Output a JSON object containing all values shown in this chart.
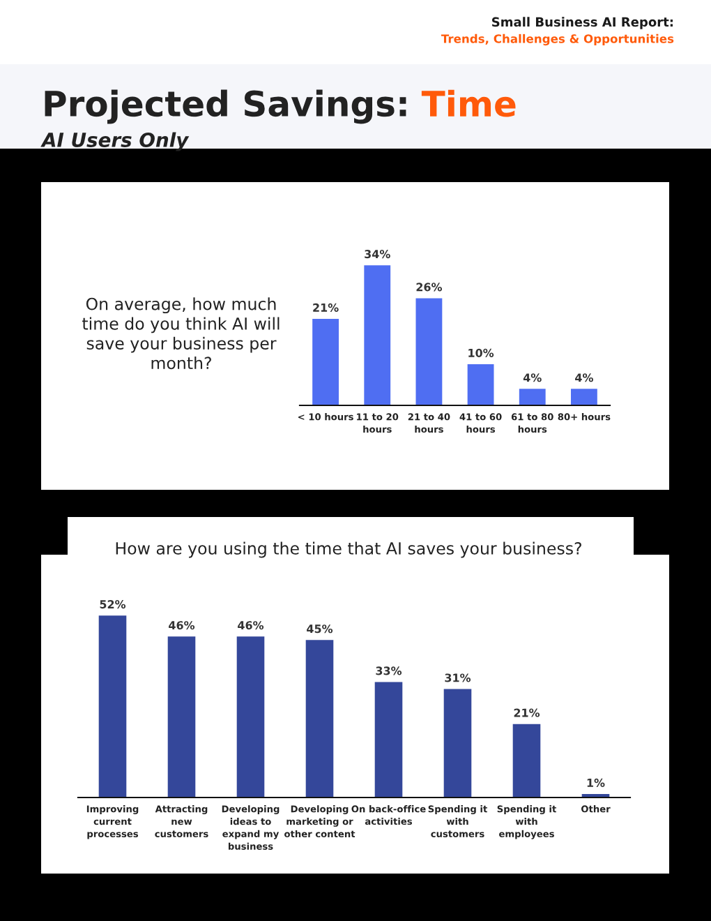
{
  "chart_data": [
    {
      "type": "bar",
      "title": "On average, how much time do you think AI will save your business per month?",
      "annotations": [
        "Small Business AI Report:",
        "Trends, Challenges & Opportunities",
        "Projected Savings:",
        "Time",
        "AI Users Only"
      ],
      "categories": [
        "< 10 hours",
        "11 to 20\nhours",
        "21 to 40\nhours",
        "41 to 60\nhours",
        "61 to 80\nhours",
        "80+ hours"
      ],
      "values": [
        21,
        34,
        26,
        10,
        4,
        4
      ],
      "color": "#4f6ef2",
      "value_labels": [
        "21%",
        "34%",
        "26%",
        "10%",
        "4%",
        "4%"
      ],
      "grid": false,
      "legend": false
    },
    {
      "type": "bar",
      "title": "How are you using the time that AI saves your business?",
      "categories": [
        "Improving\ncurrent\nprocesses",
        "Attracting\nnew\ncustomers",
        "Developing\nideas to\nexpand my\nbusiness",
        "Developing\nmarketing or\nother content",
        "On back-office\nactivities",
        "Spending it\nwith\ncustomers",
        "Spending it\nwith\nemployees",
        "Other"
      ],
      "values": [
        52,
        46,
        46,
        45,
        33,
        31,
        21,
        1
      ],
      "color": "#34479a",
      "value_labels": [
        "52%",
        "46%",
        "46%",
        "45%",
        "33%",
        "31%",
        "21%",
        "1%"
      ],
      "grid": false,
      "legend": false
    }
  ]
}
